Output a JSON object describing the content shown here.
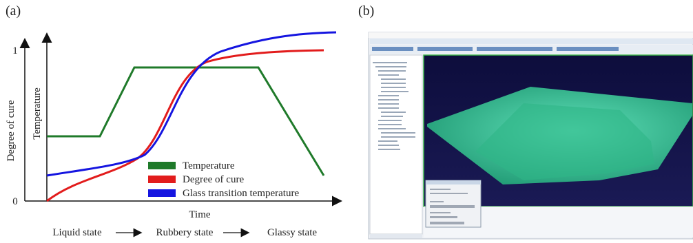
{
  "panel_a": {
    "label": "(a)",
    "outer_axis": {
      "label": "Degree of cure",
      "ticks": [
        "1",
        "0"
      ]
    },
    "inner_axis_label": "Temperature",
    "x_axis_label": "Time",
    "legend": [
      "Temperature",
      "Degree of cure",
      "Glass transition temperature"
    ],
    "states": [
      "Liquid state",
      "Rubbery state",
      "Glassy state"
    ]
  },
  "panel_b": {
    "label": "(b)"
  }
}
